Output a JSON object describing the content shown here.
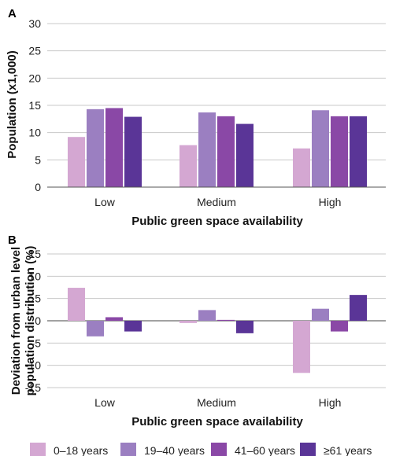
{
  "legend": {
    "colors": [
      "#d4a7d2",
      "#9b7fc1",
      "#8a48a6",
      "#5a3597"
    ]
  },
  "chart_data": [
    {
      "panel": "A",
      "type": "bar",
      "categories": [
        "Low",
        "Medium",
        "High"
      ],
      "series": [
        {
          "name": "0–18 years",
          "values": [
            9.2,
            7.7,
            7.1
          ]
        },
        {
          "name": "19–40 years",
          "values": [
            14.3,
            13.7,
            14.1
          ]
        },
        {
          "name": "41–60 years",
          "values": [
            14.5,
            13.0,
            13.0
          ]
        },
        {
          "name": "≥61 years",
          "values": [
            12.9,
            11.6,
            13.0
          ]
        }
      ],
      "xlabel": "Public green space availability",
      "ylabel": "Population (x1,000)",
      "ylim": [
        0,
        30
      ],
      "yticks": [
        "0",
        "5",
        "10",
        "15",
        "20",
        "25",
        "30"
      ],
      "grid": true
    },
    {
      "panel": "B",
      "type": "bar",
      "categories": [
        "Low",
        "Medium",
        "High"
      ],
      "series": [
        {
          "name": "0–18 years",
          "values": [
            7.4,
            -0.5,
            -11.7
          ]
        },
        {
          "name": "19–40 years",
          "values": [
            -3.5,
            2.4,
            2.7
          ]
        },
        {
          "name": "41–60 years",
          "values": [
            0.8,
            0.2,
            -2.4
          ]
        },
        {
          "name": "≥61 years",
          "values": [
            -2.4,
            -2.8,
            5.8
          ]
        }
      ],
      "xlabel": "Public green space availability",
      "ylabel_lines": [
        "Deviation from urban level",
        "population distribution (%)"
      ],
      "ylim": [
        -15,
        15
      ],
      "yticks": [
        "15",
        "10",
        "5",
        "0",
        "-5",
        "-10",
        "-15"
      ],
      "grid": true
    }
  ]
}
